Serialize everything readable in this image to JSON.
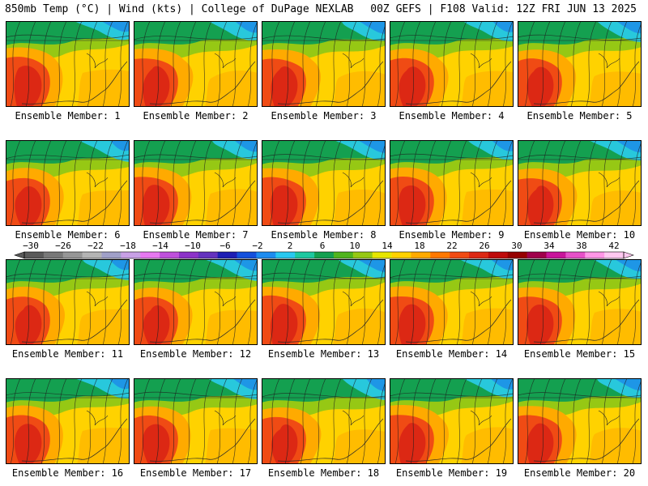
{
  "header": {
    "left": "850mb Temp (°C) | Wind (kts) | College of DuPage NEXLAB",
    "right": "00Z GEFS | F108 Valid: 12Z FRI JUN 13 2025"
  },
  "panels": [
    {
      "label": "Ensemble Member: 1"
    },
    {
      "label": "Ensemble Member: 2"
    },
    {
      "label": "Ensemble Member: 3"
    },
    {
      "label": "Ensemble Member: 4"
    },
    {
      "label": "Ensemble Member: 5"
    },
    {
      "label": "Ensemble Member: 6"
    },
    {
      "label": "Ensemble Member: 7"
    },
    {
      "label": "Ensemble Member: 8"
    },
    {
      "label": "Ensemble Member: 9"
    },
    {
      "label": "Ensemble Member: 10"
    },
    {
      "label": "Ensemble Member: 11"
    },
    {
      "label": "Ensemble Member: 12"
    },
    {
      "label": "Ensemble Member: 13"
    },
    {
      "label": "Ensemble Member: 14"
    },
    {
      "label": "Ensemble Member: 15"
    },
    {
      "label": "Ensemble Member: 16"
    },
    {
      "label": "Ensemble Member: 17"
    },
    {
      "label": "Ensemble Member: 18"
    },
    {
      "label": "Ensemble Member: 19"
    },
    {
      "label": "Ensemble Member: 20"
    }
  ],
  "colorbar": {
    "ticks": [
      "−30",
      "−26",
      "−22",
      "−18",
      "−14",
      "−10",
      "−6",
      "−2",
      "2",
      "6",
      "10",
      "14",
      "18",
      "22",
      "26",
      "30",
      "34",
      "38",
      "42"
    ],
    "colors": [
      "#5a5a5a",
      "#787878",
      "#969696",
      "#b4b4b4",
      "#a0a0c8",
      "#c8a0e6",
      "#e678f0",
      "#be50dc",
      "#8c32c8",
      "#6432be",
      "#1e1eb4",
      "#1450dc",
      "#1e8cf0",
      "#28c8f0",
      "#1ec8a0",
      "#14a050",
      "#50b41e",
      "#96c814",
      "#e6e600",
      "#ffd200",
      "#ffaa00",
      "#ff7800",
      "#f04b14",
      "#dc2814",
      "#be0a0a",
      "#960000",
      "#a0004b",
      "#c8149b",
      "#e650c8",
      "#ff96e6",
      "#ffc8f0"
    ]
  },
  "colors": {
    "cold": "#1e96e6",
    "cool": "#28c8dc",
    "green": "#14a050",
    "yellow_green": "#96c814",
    "yellow": "#ffd200",
    "orange": "#ffaa00",
    "red_orange": "#f04b14",
    "red": "#dc2814"
  }
}
